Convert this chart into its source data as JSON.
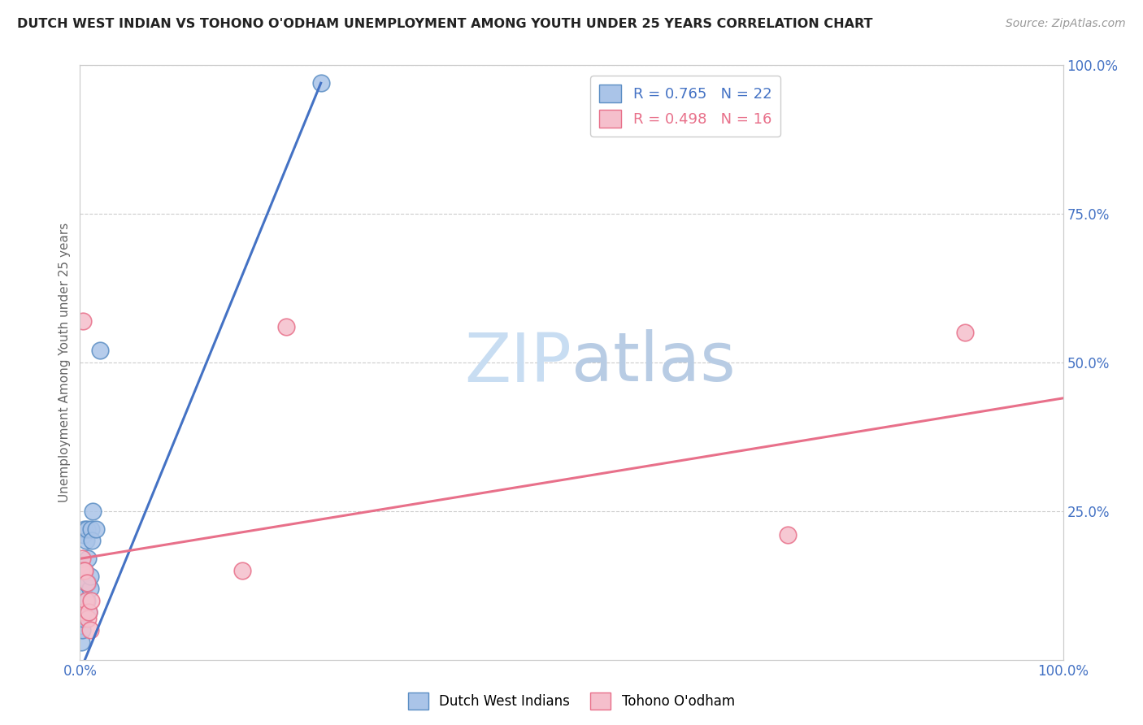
{
  "title": "DUTCH WEST INDIAN VS TOHONO O'ODHAM UNEMPLOYMENT AMONG YOUTH UNDER 25 YEARS CORRELATION CHART",
  "source": "Source: ZipAtlas.com",
  "ylabel": "Unemployment Among Youth under 25 years",
  "xlim": [
    0.0,
    1.0
  ],
  "ylim": [
    0.0,
    1.0
  ],
  "xticks": [
    0.0,
    1.0
  ],
  "xtick_labels": [
    "0.0%",
    "100.0%"
  ],
  "yticks_right": [
    0.25,
    0.5,
    0.75,
    1.0
  ],
  "ytick_labels_right": [
    "25.0%",
    "50.0%",
    "75.0%",
    "100.0%"
  ],
  "blue_color": "#aac4e8",
  "blue_edge_color": "#5b8ec4",
  "pink_color": "#f5bfcc",
  "pink_edge_color": "#e8708a",
  "line_blue": "#4472c4",
  "line_pink": "#e8708a",
  "legend_R1": "R = 0.765",
  "legend_N1": "N = 22",
  "legend_R2": "R = 0.498",
  "legend_N2": "N = 16",
  "legend_color1": "#4472c4",
  "legend_color2": "#e8708a",
  "legend_label1": "Dutch West Indians",
  "legend_label2": "Tohono O'odham",
  "watermark_zip": "ZIP",
  "watermark_atlas": "atlas",
  "background_color": "#ffffff",
  "grid_color": "#cccccc",
  "blue_scatter_x": [
    0.001,
    0.002,
    0.003,
    0.004,
    0.004,
    0.005,
    0.005,
    0.006,
    0.006,
    0.007,
    0.007,
    0.008,
    0.008,
    0.009,
    0.01,
    0.01,
    0.011,
    0.012,
    0.013,
    0.016,
    0.02,
    0.245
  ],
  "blue_scatter_y": [
    0.03,
    0.05,
    0.07,
    0.12,
    0.21,
    0.15,
    0.22,
    0.2,
    0.13,
    0.1,
    0.22,
    0.17,
    0.13,
    0.08,
    0.12,
    0.14,
    0.22,
    0.2,
    0.25,
    0.22,
    0.52,
    0.97
  ],
  "pink_scatter_x": [
    0.001,
    0.002,
    0.003,
    0.004,
    0.005,
    0.006,
    0.007,
    0.008,
    0.009,
    0.01,
    0.011,
    0.165,
    0.21,
    0.72,
    0.9,
    0.003
  ],
  "pink_scatter_y": [
    0.15,
    0.17,
    0.08,
    0.15,
    0.15,
    0.1,
    0.13,
    0.07,
    0.08,
    0.05,
    0.1,
    0.15,
    0.56,
    0.21,
    0.55,
    0.57
  ],
  "blue_line_x": [
    0.0,
    0.245
  ],
  "blue_line_y": [
    -0.02,
    0.97
  ],
  "pink_line_x": [
    0.0,
    1.0
  ],
  "pink_line_y": [
    0.17,
    0.44
  ]
}
